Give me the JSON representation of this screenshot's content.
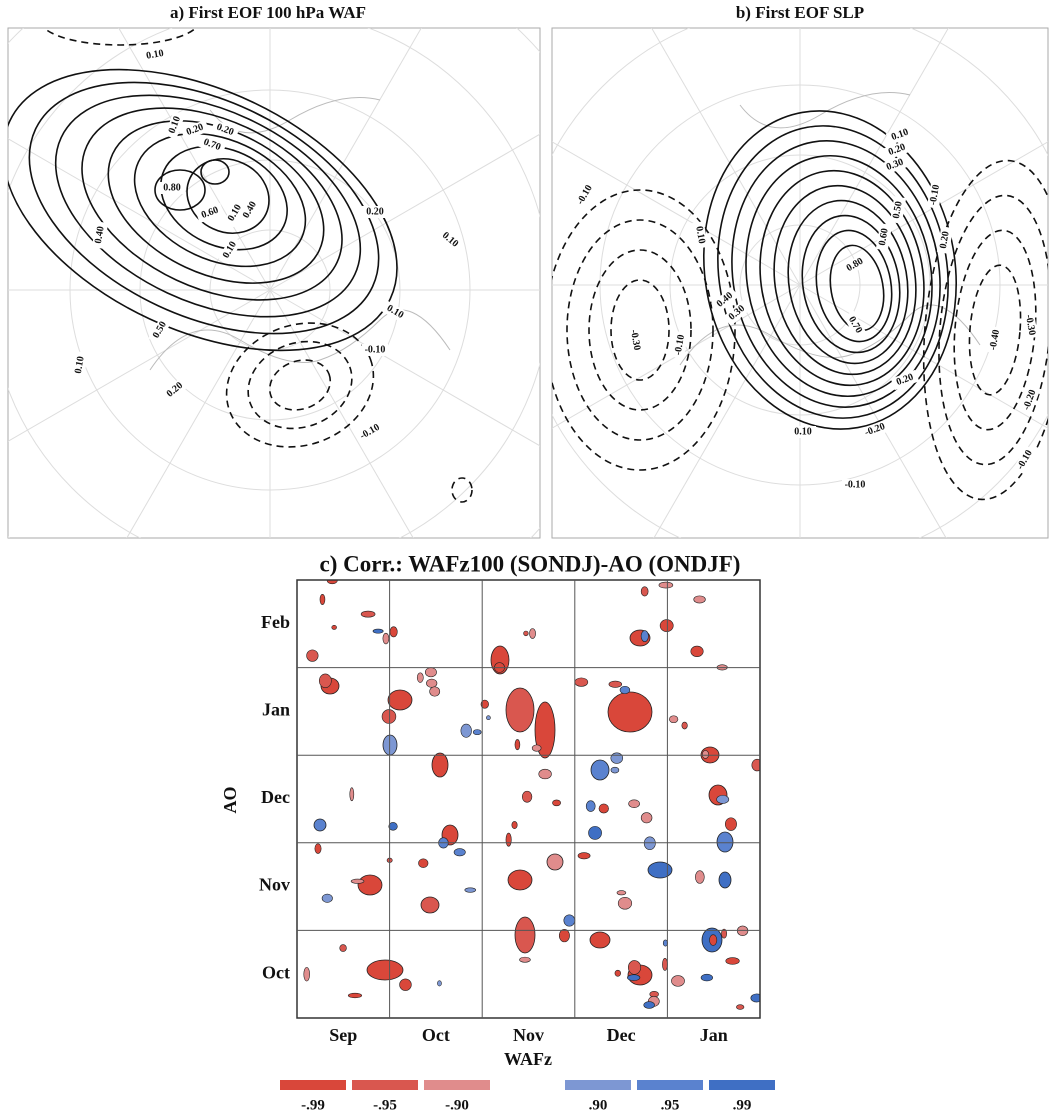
{
  "panels": [
    {
      "title": "a) First EOF 100 hPa WAF",
      "contour_labels": [
        "0.10",
        "0.20",
        "0.10",
        "0.20",
        "0.70",
        "0.80",
        "0.60",
        "0.40",
        "0.10",
        "0.20",
        "0.10",
        "0.10",
        "0.40",
        "0.50",
        "0.20",
        "0.10",
        "0.10",
        "-0.10",
        "-0.10"
      ]
    },
    {
      "title": "b) First EOF SLP",
      "contour_labels": [
        "0.10",
        "0.20",
        "0.30",
        "-0.10",
        "-0.10",
        "0.10",
        "0.50",
        "0.60",
        "0.80",
        "0.20",
        "0.40",
        "0.30",
        "0.70",
        "0.20",
        "-0.30",
        "-0.10",
        "-0.30",
        "-0.40",
        "-0.20",
        "-0.10",
        "-0.20",
        "0.10",
        "-0.10"
      ]
    }
  ],
  "correlation": {
    "title": "c) Corr.: WAFz100 (SONDJ)-AO (ONDJF)",
    "y_label": "AO",
    "x_label": "WAFz",
    "x_categories": [
      "Sep",
      "Oct",
      "Nov",
      "Dec",
      "Jan"
    ],
    "y_categories": [
      "Oct",
      "Nov",
      "Dec",
      "Jan",
      "Feb"
    ],
    "legend": [
      {
        "label": "-.99",
        "color": "#d9473a"
      },
      {
        "label": "-.95",
        "color": "#d9574f"
      },
      {
        "label": "-.90",
        "color": "#e08c8c"
      },
      {
        "label": ".90",
        "color": "#7d97d3"
      },
      {
        "label": ".95",
        "color": "#5a82cf"
      },
      {
        "label": ".99",
        "color": "#3f6fc4"
      }
    ]
  }
}
